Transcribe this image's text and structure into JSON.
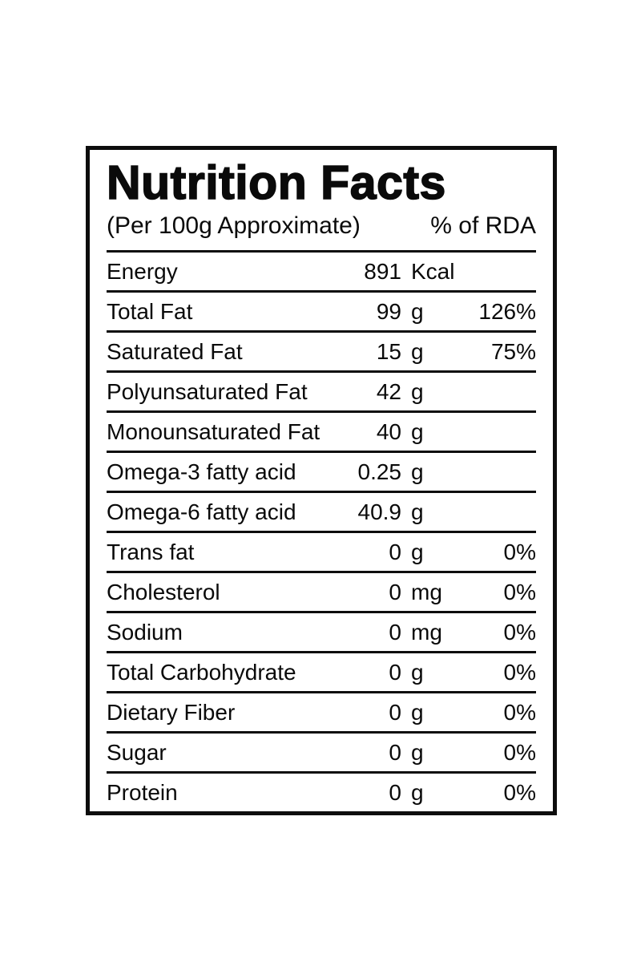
{
  "label": {
    "title": "Nutrition Facts",
    "subtitle_left": "(Per 100g Approximate)",
    "subtitle_right": "% of RDA",
    "rows": [
      {
        "name": "Energy",
        "value": "891",
        "unit": "Kcal",
        "rda": ""
      },
      {
        "name": "Total Fat",
        "value": "99",
        "unit": "g",
        "rda": "126%"
      },
      {
        "name": "Saturated Fat",
        "value": "15",
        "unit": "g",
        "rda": "75%"
      },
      {
        "name": "Polyunsaturated Fat",
        "value": "42",
        "unit": "g",
        "rda": ""
      },
      {
        "name": "Monounsaturated Fat",
        "value": "40",
        "unit": "g",
        "rda": ""
      },
      {
        "name": "Omega-3 fatty acid",
        "value": "0.25",
        "unit": "g",
        "rda": ""
      },
      {
        "name": "Omega-6 fatty acid",
        "value": "40.9",
        "unit": "g",
        "rda": ""
      },
      {
        "name": "Trans fat",
        "value": "0",
        "unit": "g",
        "rda": "0%"
      },
      {
        "name": "Cholesterol",
        "value": "0",
        "unit": "mg",
        "rda": "0%"
      },
      {
        "name": "Sodium",
        "value": "0",
        "unit": "mg",
        "rda": "0%"
      },
      {
        "name": "Total Carbohydrate",
        "value": "0",
        "unit": "g",
        "rda": "0%"
      },
      {
        "name": "Dietary Fiber",
        "value": "0",
        "unit": "g",
        "rda": "0%"
      },
      {
        "name": "Sugar",
        "value": "0",
        "unit": "g",
        "rda": "0%"
      },
      {
        "name": "Protein",
        "value": "0",
        "unit": "g",
        "rda": "0%"
      }
    ],
    "colors": {
      "text": "#0a0a0a",
      "border": "#0d0d0d",
      "background": "#ffffff"
    }
  }
}
